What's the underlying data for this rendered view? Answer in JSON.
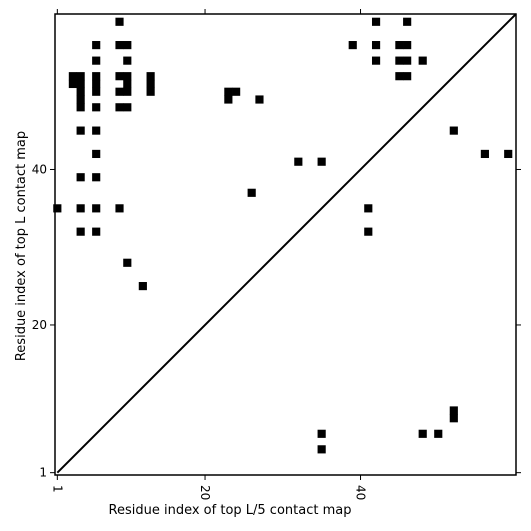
{
  "chart_data": {
    "type": "heatmap",
    "xlabel": "Residue index of top L/5 contact map",
    "ylabel": "Residue index of top L contact map",
    "xlim": [
      0.7,
      60
    ],
    "ylim": [
      0.7,
      60
    ],
    "x_ticks": [
      1,
      20,
      40
    ],
    "y_ticks": [
      1,
      20,
      40
    ],
    "x_tick_rotation": "vertical",
    "diagonal": true,
    "grid": false,
    "color": "#000000",
    "upper_triangle": [
      [
        9,
        59
      ],
      [
        42,
        59
      ],
      [
        46,
        59
      ],
      [
        6,
        56
      ],
      [
        9,
        56
      ],
      [
        10,
        56
      ],
      [
        39,
        56
      ],
      [
        42,
        56
      ],
      [
        45,
        56
      ],
      [
        46,
        56
      ],
      [
        6,
        54
      ],
      [
        10,
        54
      ],
      [
        42,
        54
      ],
      [
        45,
        54
      ],
      [
        46,
        54
      ],
      [
        48,
        54
      ],
      [
        3,
        52
      ],
      [
        4,
        52
      ],
      [
        6,
        52
      ],
      [
        9,
        52
      ],
      [
        10,
        52
      ],
      [
        13,
        52
      ],
      [
        45,
        52
      ],
      [
        46,
        52
      ],
      [
        3,
        51
      ],
      [
        4,
        51
      ],
      [
        6,
        51
      ],
      [
        10,
        51
      ],
      [
        13,
        51
      ],
      [
        4,
        50
      ],
      [
        6,
        50
      ],
      [
        9,
        50
      ],
      [
        10,
        50
      ],
      [
        13,
        50
      ],
      [
        23,
        50
      ],
      [
        24,
        50
      ],
      [
        4,
        49
      ],
      [
        23,
        49
      ],
      [
        27,
        49
      ],
      [
        4,
        48
      ],
      [
        6,
        48
      ],
      [
        9,
        48
      ],
      [
        10,
        48
      ],
      [
        4,
        45
      ],
      [
        6,
        45
      ],
      [
        52,
        45
      ],
      [
        6,
        42
      ],
      [
        56,
        42
      ],
      [
        59,
        42
      ],
      [
        32,
        41
      ],
      [
        35,
        41
      ],
      [
        4,
        39
      ],
      [
        6,
        39
      ],
      [
        26,
        37
      ],
      [
        1,
        35
      ],
      [
        4,
        35
      ],
      [
        6,
        35
      ],
      [
        9,
        35
      ],
      [
        41,
        35
      ],
      [
        4,
        32
      ],
      [
        6,
        32
      ],
      [
        41,
        32
      ],
      [
        10,
        28
      ],
      [
        12,
        25
      ]
    ],
    "lower_triangle": [
      [
        52,
        9
      ],
      [
        52,
        8
      ],
      [
        35,
        6
      ],
      [
        48,
        6
      ],
      [
        50,
        6
      ],
      [
        35,
        4
      ]
    ]
  }
}
